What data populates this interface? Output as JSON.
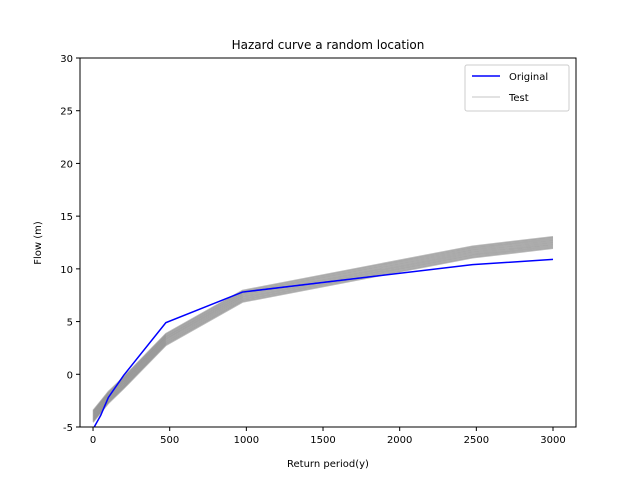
{
  "chart_data": {
    "type": "line",
    "title": "Hazard curve a random location",
    "xlabel": "Return period(y)",
    "ylabel": "Flow (m)",
    "xlim": [
      -85,
      3150
    ],
    "ylim": [
      -5,
      30
    ],
    "xticks": [
      0,
      500,
      1000,
      1500,
      2000,
      2500,
      3000
    ],
    "yticks": [
      -5,
      0,
      5,
      10,
      15,
      20,
      25,
      30
    ],
    "grid": false,
    "legend_position": "top-right",
    "series": [
      {
        "name": "Original",
        "color": "#0000ff",
        "x": [
          0,
          50,
          100,
          200,
          475,
          975,
          2475,
          3000
        ],
        "y": [
          -5.2,
          -3.9,
          -2.2,
          -0.1,
          4.9,
          7.8,
          10.4,
          10.9
        ]
      },
      {
        "name": "Test",
        "color": "#808080",
        "legend_color": "#d9d9d9",
        "x": [
          0,
          50,
          100,
          200,
          475,
          975,
          2475,
          3000
        ],
        "y": [
          -4.0,
          -3.1,
          -2.2,
          -0.8,
          3.3,
          7.4,
          11.6,
          12.5
        ],
        "band_halfwidth": 0.55
      }
    ]
  }
}
